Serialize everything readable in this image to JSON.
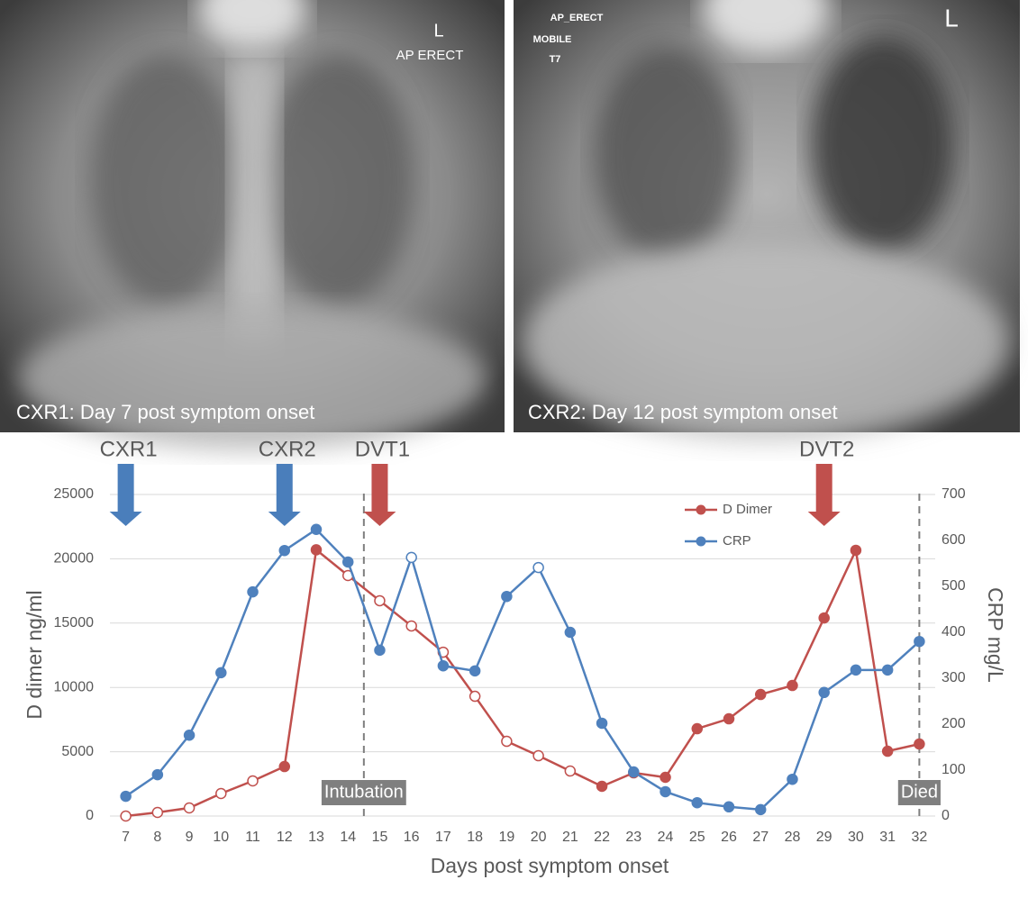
{
  "images": [
    {
      "caption": "CXR1: Day 7 post symptom onset",
      "labels": [
        "L",
        "AP ERECT"
      ]
    },
    {
      "caption": "CXR2: Day 12 post symptom onset",
      "labels": [
        "AP_ERECT",
        "MOBILE",
        "T7",
        "L"
      ]
    }
  ],
  "chart_data": {
    "type": "line",
    "x_label": "Days post symptom onset",
    "y_label": "D dimer ng/ml",
    "y2_label": "CRP mg/L",
    "x": [
      7,
      8,
      9,
      10,
      11,
      12,
      13,
      14,
      15,
      16,
      17,
      18,
      19,
      20,
      21,
      22,
      23,
      24,
      25,
      26,
      27,
      28,
      29,
      30,
      31,
      32
    ],
    "xlim": [
      6.5,
      32.5
    ],
    "xticks": [
      7,
      8,
      9,
      10,
      11,
      12,
      13,
      14,
      15,
      16,
      17,
      18,
      19,
      20,
      21,
      22,
      23,
      24,
      25,
      26,
      27,
      28,
      29,
      30,
      31,
      32
    ],
    "ylim": [
      0,
      25000
    ],
    "yticks": [
      0,
      5000,
      10000,
      15000,
      20000,
      25000
    ],
    "y2lim": [
      0,
      700
    ],
    "y2ticks": [
      0,
      100,
      200,
      300,
      400,
      500,
      600,
      700
    ],
    "grid": true,
    "legend": "upper right",
    "series": [
      {
        "name": "D Dimer",
        "color": "#c0504d",
        "values": [
          0,
          280,
          630,
          1750,
          2730,
          3850,
          20700,
          18700,
          16740,
          14780,
          12740,
          9310,
          5810,
          4690,
          3500,
          2310,
          3360,
          3010,
          6790,
          7560,
          9450,
          10150,
          15400,
          20660,
          5040,
          5600
        ],
        "filled": [
          false,
          false,
          false,
          false,
          false,
          true,
          true,
          false,
          false,
          false,
          false,
          false,
          false,
          false,
          false,
          true,
          true,
          true,
          true,
          true,
          true,
          true,
          true,
          true,
          true,
          true
        ]
      },
      {
        "name": "CRP",
        "color": "#4f81bd",
        "axis": "y2",
        "values": [
          43,
          90,
          176,
          312,
          488,
          578,
          624,
          553,
          361,
          563,
          327,
          316,
          478,
          541,
          400,
          202,
          96,
          53,
          29,
          20,
          14,
          80,
          269,
          318,
          318,
          380
        ],
        "filled": [
          true,
          true,
          true,
          true,
          true,
          true,
          true,
          true,
          true,
          false,
          true,
          true,
          true,
          false,
          true,
          true,
          true,
          true,
          true,
          true,
          true,
          true,
          true,
          true,
          true,
          true
        ]
      }
    ],
    "arrows": [
      {
        "text": "CXR1",
        "x": 7,
        "color": "#4a7ebb"
      },
      {
        "text": "CXR2",
        "x": 12,
        "color": "#4a7ebb"
      },
      {
        "text": "DVT1",
        "x": 15,
        "color": "#c0504d"
      },
      {
        "text": "DVT2",
        "x": 29,
        "color": "#c0504d"
      }
    ],
    "events": [
      {
        "text": "Intubation",
        "x": 14.5
      },
      {
        "text": "Died",
        "x": 32
      }
    ]
  }
}
